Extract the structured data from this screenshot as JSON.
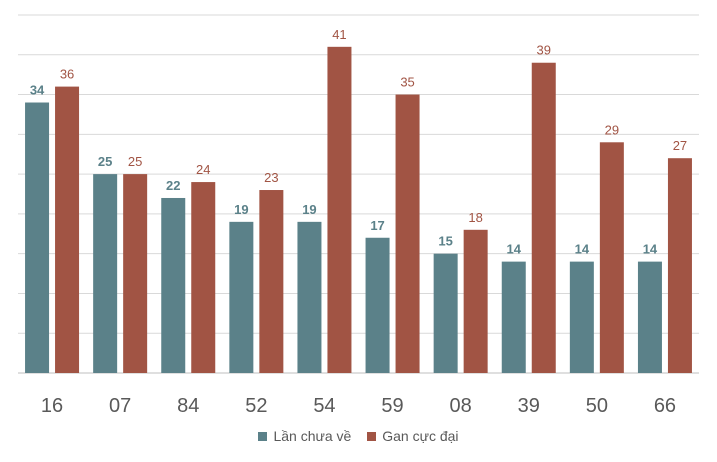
{
  "chart_data": {
    "type": "bar",
    "categories": [
      "16",
      "07",
      "84",
      "52",
      "54",
      "59",
      "08",
      "39",
      "50",
      "66"
    ],
    "series": [
      {
        "name": "Lần chưa về",
        "values": [
          34,
          25,
          22,
          19,
          19,
          17,
          15,
          14,
          14,
          14
        ],
        "color": "#5b8189"
      },
      {
        "name": "Gan cực đại",
        "values": [
          36,
          25,
          24,
          23,
          41,
          35,
          18,
          39,
          29,
          27
        ],
        "color": "#a15444"
      }
    ],
    "ylim": [
      0,
      45
    ],
    "grid": true,
    "legend": "bottom"
  }
}
